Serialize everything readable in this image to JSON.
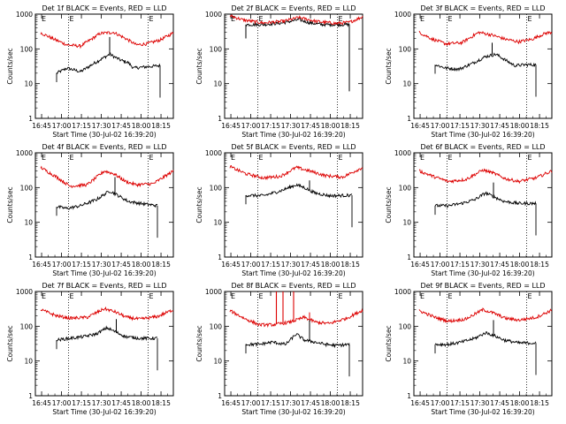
{
  "page": {
    "background": "#ffffff"
  },
  "colors": {
    "events": "#000000",
    "lld": "#dd0000",
    "frame": "#000000"
  },
  "shared": {
    "xlabel": "Start Time (30-Jul-02 16:39:20)",
    "ylabel": "Counts/sec",
    "xtick_labels": [
      "16:45",
      "17:00",
      "17:15",
      "17:30",
      "17:45",
      "18:00",
      "18:15"
    ],
    "ytick_labels": [
      "1",
      "10",
      "100",
      "1000"
    ],
    "x_range_min": [
      -4,
      100
    ],
    "y_range_log": [
      1,
      1000
    ],
    "marker_text": "E",
    "markers_min": [
      0,
      21,
      81
    ]
  },
  "chart_data": [
    {
      "type": "line",
      "title": "Det 1f BLACK = Events, RED = LLD",
      "series": [
        {
          "name": "Events",
          "color": "#000000",
          "start": 12,
          "end": 90,
          "x": [
            12,
            20,
            30,
            40,
            52,
            60,
            66,
            70,
            78,
            90
          ],
          "y": [
            20,
            28,
            22,
            38,
            70,
            48,
            40,
            28,
            30,
            33
          ]
        },
        {
          "name": "LLD",
          "color": "#dd0000",
          "start": 0,
          "end": 100,
          "x": [
            0,
            10,
            20,
            30,
            45,
            55,
            65,
            72,
            80,
            90,
            100
          ],
          "y": [
            290,
            190,
            130,
            120,
            280,
            300,
            190,
            130,
            140,
            180,
            290
          ]
        }
      ],
      "spikes": [
        {
          "x": 52,
          "events": 220,
          "lld": 260
        }
      ]
    },
    {
      "type": "line",
      "title": "Det 2f BLACK = Events, RED = LLD",
      "series": [
        {
          "name": "Events",
          "color": "#000000",
          "start": 12,
          "end": 90,
          "x": [
            12,
            25,
            40,
            52,
            60,
            70,
            90
          ],
          "y": [
            500,
            500,
            560,
            700,
            560,
            500,
            500
          ]
        },
        {
          "name": "LLD",
          "color": "#dd0000",
          "start": 0,
          "end": 100,
          "x": [
            0,
            10,
            25,
            40,
            52,
            65,
            80,
            90,
            100
          ],
          "y": [
            900,
            680,
            560,
            620,
            800,
            620,
            540,
            580,
            840
          ]
        }
      ],
      "spikes": [],
      "drops": [
        {
          "x": 12,
          "to": 200
        },
        {
          "x": 90,
          "to": 6
        }
      ]
    },
    {
      "type": "line",
      "title": "Det 3f BLACK = Events, RED = LLD",
      "series": [
        {
          "name": "Events",
          "color": "#000000",
          "start": 12,
          "end": 88,
          "x": [
            12,
            20,
            30,
            40,
            50,
            58,
            66,
            72,
            80,
            88
          ],
          "y": [
            35,
            28,
            26,
            38,
            60,
            70,
            45,
            33,
            35,
            35
          ]
        },
        {
          "name": "LLD",
          "color": "#dd0000",
          "start": 0,
          "end": 100,
          "x": [
            0,
            10,
            20,
            32,
            45,
            55,
            65,
            75,
            85,
            95,
            100
          ],
          "y": [
            300,
            190,
            140,
            150,
            300,
            250,
            190,
            160,
            190,
            280,
            300
          ]
        }
      ],
      "spikes": [
        {
          "x": 55,
          "events": 150,
          "lld": 250
        }
      ]
    },
    {
      "type": "line",
      "title": "Det 4f BLACK = Events, RED = LLD",
      "series": [
        {
          "name": "Events",
          "color": "#000000",
          "start": 12,
          "end": 88,
          "x": [
            12,
            20,
            30,
            42,
            52,
            58,
            66,
            75,
            88
          ],
          "y": [
            28,
            25,
            30,
            45,
            80,
            60,
            40,
            35,
            30
          ]
        },
        {
          "name": "LLD",
          "color": "#dd0000",
          "start": 0,
          "end": 100,
          "x": [
            0,
            12,
            22,
            35,
            48,
            55,
            64,
            72,
            85,
            100
          ],
          "y": [
            380,
            200,
            110,
            120,
            300,
            250,
            150,
            120,
            130,
            300
          ]
        }
      ],
      "spikes": [
        {
          "x": 56,
          "events": 200,
          "lld": 260
        }
      ]
    },
    {
      "type": "line",
      "title": "Det 5f BLACK = Events, RED = LLD",
      "series": [
        {
          "name": "Events",
          "color": "#000000",
          "start": 12,
          "end": 92,
          "x": [
            12,
            25,
            38,
            50,
            56,
            64,
            75,
            92
          ],
          "y": [
            60,
            58,
            80,
            120,
            100,
            70,
            58,
            60
          ]
        },
        {
          "name": "LLD",
          "color": "#dd0000",
          "start": 0,
          "end": 100,
          "x": [
            0,
            12,
            25,
            38,
            50,
            60,
            72,
            85,
            100
          ],
          "y": [
            400,
            250,
            190,
            210,
            380,
            300,
            220,
            200,
            380
          ]
        }
      ],
      "spikes": [
        {
          "x": 60,
          "events": 160,
          "lld": 300
        }
      ]
    },
    {
      "type": "line",
      "title": "Det 6f BLACK = Events, RED = LLD",
      "series": [
        {
          "name": "Events",
          "color": "#000000",
          "start": 12,
          "end": 88,
          "x": [
            12,
            22,
            32,
            42,
            50,
            56,
            64,
            75,
            88
          ],
          "y": [
            30,
            30,
            35,
            45,
            70,
            55,
            40,
            35,
            35
          ]
        },
        {
          "name": "LLD",
          "color": "#dd0000",
          "start": 0,
          "end": 100,
          "x": [
            0,
            12,
            22,
            35,
            48,
            56,
            65,
            75,
            88,
            100
          ],
          "y": [
            300,
            200,
            150,
            170,
            320,
            260,
            180,
            150,
            190,
            300
          ]
        }
      ],
      "spikes": [
        {
          "x": 56,
          "events": 140,
          "lld": 280
        }
      ]
    },
    {
      "type": "line",
      "title": "Det 7f BLACK = Events, RED = LLD",
      "series": [
        {
          "name": "Events",
          "color": "#000000",
          "start": 12,
          "end": 88,
          "x": [
            12,
            22,
            32,
            42,
            50,
            56,
            64,
            75,
            88
          ],
          "y": [
            40,
            45,
            50,
            60,
            90,
            70,
            50,
            45,
            45
          ]
        },
        {
          "name": "LLD",
          "color": "#dd0000",
          "start": 0,
          "end": 100,
          "x": [
            0,
            12,
            22,
            35,
            48,
            56,
            65,
            75,
            88,
            100
          ],
          "y": [
            300,
            200,
            170,
            180,
            320,
            260,
            180,
            160,
            190,
            300
          ]
        }
      ],
      "spikes": [
        {
          "x": 57,
          "events": 160,
          "lld": 250
        }
      ]
    },
    {
      "type": "line",
      "title": "Det 8f BLACK = Events, RED = LLD",
      "series": [
        {
          "name": "Events",
          "color": "#000000",
          "start": 12,
          "end": 90,
          "x": [
            12,
            22,
            32,
            42,
            50,
            56,
            64,
            72,
            80,
            90
          ],
          "y": [
            30,
            30,
            35,
            30,
            60,
            40,
            35,
            30,
            28,
            30
          ]
        },
        {
          "name": "LLD",
          "color": "#dd0000",
          "start": 0,
          "end": 100,
          "x": [
            0,
            12,
            22,
            32,
            45,
            56,
            65,
            75,
            88,
            100
          ],
          "y": [
            280,
            160,
            110,
            110,
            130,
            180,
            130,
            120,
            170,
            290
          ]
        }
      ],
      "spikes": [
        {
          "x": 60,
          "events": 150,
          "lld": 250
        }
      ],
      "lld_bursts": [
        {
          "x": 35,
          "to": 1000
        },
        {
          "x": 40,
          "to": 1000
        },
        {
          "x": 48,
          "to": 1000
        }
      ]
    },
    {
      "type": "line",
      "title": "Det 9f BLACK = Events, RED = LLD",
      "series": [
        {
          "name": "Events",
          "color": "#000000",
          "start": 12,
          "end": 88,
          "x": [
            12,
            22,
            32,
            42,
            50,
            56,
            64,
            75,
            88
          ],
          "y": [
            30,
            30,
            35,
            45,
            65,
            55,
            40,
            33,
            33
          ]
        },
        {
          "name": "LLD",
          "color": "#dd0000",
          "start": 0,
          "end": 100,
          "x": [
            0,
            12,
            22,
            35,
            48,
            56,
            65,
            75,
            88,
            100
          ],
          "y": [
            280,
            180,
            140,
            160,
            300,
            240,
            170,
            150,
            180,
            290
          ]
        }
      ],
      "spikes": [
        {
          "x": 56,
          "events": 150,
          "lld": 260
        }
      ]
    }
  ]
}
